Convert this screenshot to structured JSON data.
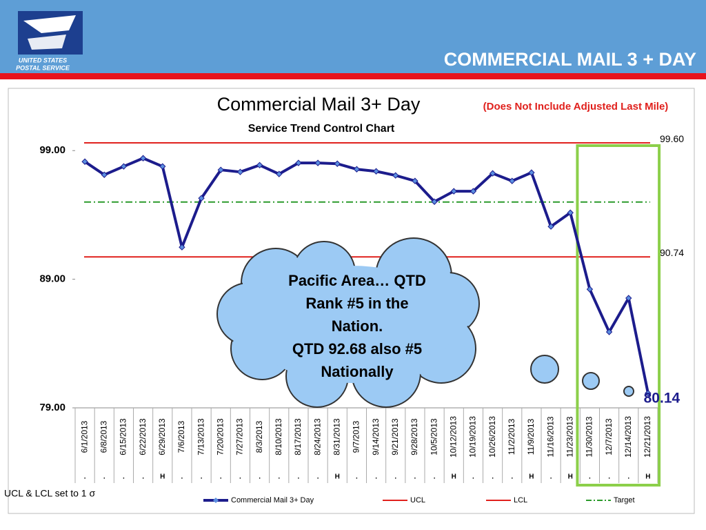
{
  "header": {
    "org_line1": "UNITED STATES",
    "org_line2": "POSTAL SERVICE",
    "slide_title": "COMMERCIAL MAIL 3 + DAY"
  },
  "chart_data": {
    "type": "line",
    "title": "Commercial Mail 3+ Day",
    "note": "(Does Not Include Adjusted Last Mile)",
    "subtitle": "Service Trend Control Chart",
    "categories": [
      "6/1/2013",
      "6/8/2013",
      "6/15/2013",
      "6/22/2013",
      "6/29/2013",
      "7/6/2013",
      "7/13/2013",
      "7/20/2013",
      "7/27/2013",
      "8/3/2013",
      "8/10/2013",
      "8/17/2013",
      "8/24/2013",
      "8/31/2013",
      "9/7/2013",
      "9/14/2013",
      "9/21/2013",
      "9/28/2013",
      "10/5/2013",
      "10/12/2013",
      "10/19/2013",
      "10/26/2013",
      "11/2/2013",
      "11/9/2013",
      "11/16/2013",
      "11/23/2013",
      "11/30/2013",
      "12/7/2013",
      "12/14/2013",
      "12/21/2013"
    ],
    "flags": [
      ".",
      ".",
      ".",
      ".",
      "H",
      ".",
      ".",
      ".",
      ".",
      ".",
      ".",
      ".",
      ".",
      "H",
      ".",
      ".",
      ".",
      ".",
      ".",
      "H",
      ".",
      ".",
      ".",
      "H",
      ".",
      "H",
      ".",
      ".",
      ".",
      "H"
    ],
    "series": [
      {
        "name": "Commercial Mail 3+ Day",
        "color": "#1c1c8c",
        "values": [
          98.14,
          97.12,
          97.77,
          98.41,
          97.77,
          91.49,
          95.3,
          97.5,
          97.34,
          97.87,
          97.18,
          98.04,
          98.04,
          97.98,
          97.55,
          97.39,
          97.07,
          96.64,
          95.03,
          95.84,
          95.84,
          97.23,
          96.64,
          97.29,
          93.1,
          94.17,
          88.22,
          84.9,
          87.53,
          80.14
        ]
      }
    ],
    "lines": [
      {
        "name": "UCL",
        "color": "#e0201c",
        "value": {
          "value": 99.6,
          "label": "99.60"
        }
      },
      {
        "name": "LCL",
        "color": "#e0201c",
        "value": 90.74
      },
      {
        "name": "Target",
        "color": "#2a9a2a",
        "value": 95,
        "dash": true
      }
    ],
    "ylim": [
      79,
      100
    ],
    "yticks": [
      {
        "value": 79,
        "label": "79.00"
      },
      {
        "value": 89,
        "label": "89.00"
      },
      {
        "value": 99,
        "label": "99.00"
      }
    ],
    "highlight_color": "#8ccf4a"
  },
  "callout": {
    "lines": [
      "Pacific Area… QTD",
      "Rank #5 in the",
      "Nation.",
      "QTD 92.68 also #5",
      "Nationally"
    ]
  },
  "footnote": "UCL & LCL set to 1 σ"
}
